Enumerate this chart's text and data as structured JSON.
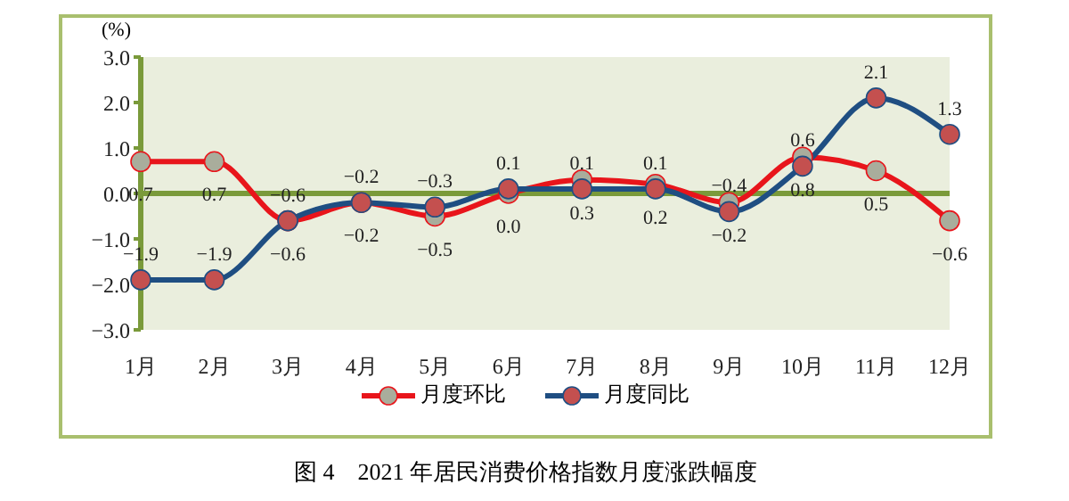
{
  "chart_data": {
    "type": "line",
    "title": "图 4　2021 年居民消费价格指数月度涨跌幅度",
    "ylabel": "(%)",
    "categories": [
      "1月",
      "2月",
      "3月",
      "4月",
      "5月",
      "6月",
      "7月",
      "8月",
      "9月",
      "10月",
      "11月",
      "12月"
    ],
    "series": [
      {
        "name": "月度环比",
        "color": "#e8151b",
        "values": [
          0.7,
          0.7,
          -0.6,
          -0.2,
          -0.5,
          0.0,
          0.3,
          0.2,
          -0.2,
          0.8,
          0.5,
          -0.6
        ],
        "value_labels": [
          "0.7",
          "0.7",
          "−0.6",
          "−0.2",
          "−0.5",
          "0.0",
          "0.3",
          "0.2",
          "−0.2",
          "0.8",
          "0.5",
          "−0.6"
        ]
      },
      {
        "name": "月度同比",
        "color": "#1f4e82",
        "values": [
          -1.9,
          -1.9,
          -0.6,
          -0.2,
          -0.3,
          0.1,
          0.1,
          0.1,
          -0.4,
          0.6,
          2.1,
          1.3
        ],
        "value_labels": [
          "−1.9",
          "−1.9",
          "−0.6",
          "−0.2",
          "−0.3",
          "0.1",
          "0.1",
          "0.1",
          "−0.4",
          "0.6",
          "2.1",
          "1.3"
        ]
      }
    ],
    "ylim": [
      -3,
      3
    ],
    "yticks": [
      {
        "value": -3,
        "label": "−3.0"
      },
      {
        "value": -2,
        "label": "−2.0"
      },
      {
        "value": -1,
        "label": "−1.0"
      },
      {
        "value": 0,
        "label": "0.0"
      },
      {
        "value": 1,
        "label": "1.0"
      },
      {
        "value": 2,
        "label": "2.0"
      },
      {
        "value": 3,
        "label": "3.0"
      }
    ],
    "ref_lines": [
      {
        "axis": "y",
        "value": 0,
        "color": "#7a9a3a"
      }
    ],
    "marker": "circle",
    "line_style": "solid",
    "legend": "bottom",
    "grid": false
  }
}
